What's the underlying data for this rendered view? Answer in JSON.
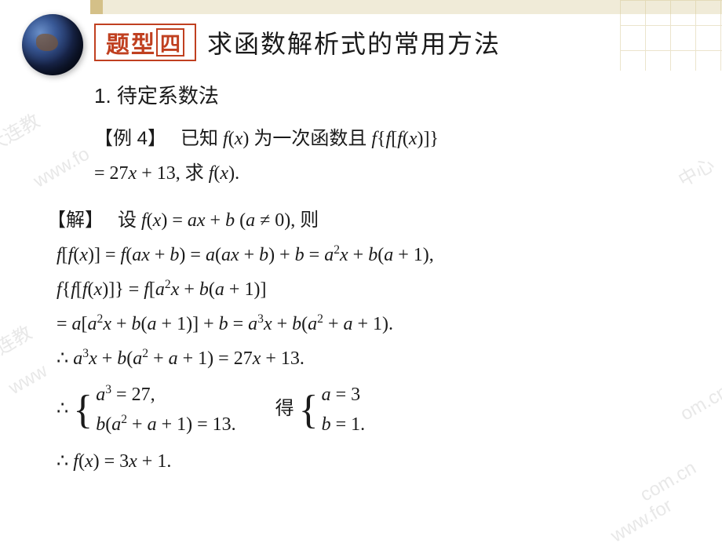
{
  "colors": {
    "badge_border": "#c04020",
    "badge_text": "#c04020",
    "text": "#1a1a1a",
    "watermark": "#e8e8e8",
    "accent_bg": "#d4c088",
    "grid": "#d8ca9a"
  },
  "header": {
    "badge_char1": "题",
    "badge_char2": "型",
    "badge_char3": "四",
    "title": "求函数解析式的常用方法"
  },
  "section": {
    "method_title": "1. 待定系数法",
    "example_label": "【例 4】",
    "problem_line1": "已知 f(x) 为一次函数且 f{f[f(x)]}",
    "problem_line2": "= 27x + 13, 求 f(x)."
  },
  "solution": {
    "label": "【解】",
    "assume": "设 f(x) = ax + b (a ≠ 0), 则",
    "step1": "f[f(x)] = f(ax + b) = a(ax + b) + b = a²x + b(a + 1),",
    "step2a": "f{f[f(x)]} = f[a²x + b(a + 1)]",
    "step2b": "= a[a²x + b(a + 1)] + b = a³x + b(a² + a + 1).",
    "step3": "∴ a³x + b(a² + a + 1) = 27x + 13.",
    "sys1_eq1": "a³ = 27,",
    "sys1_eq2": "b(a² + a + 1) = 13.",
    "sys_mid": "得",
    "sys2_eq1": "a = 3",
    "sys2_eq2": "b = 1.",
    "therefore_prefix": "∴",
    "result": "∴ f(x) = 3x + 1."
  },
  "watermarks": {
    "t1": "大连教",
    "t2": "www.fo",
    "t3": "大连教",
    "t4": "www",
    "t5": "中心",
    "t6": "om.cn",
    "t7": "com.cn",
    "t8": "www.for"
  }
}
